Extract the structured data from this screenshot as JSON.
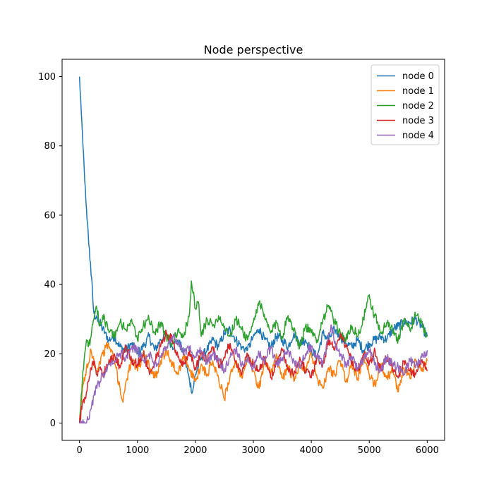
{
  "chart_data": {
    "type": "line",
    "title": "Node perspective",
    "xlabel": "",
    "ylabel": "",
    "xlim": [
      -300,
      6300
    ],
    "ylim": [
      -5,
      105
    ],
    "x_ticks": [
      0,
      1000,
      2000,
      3000,
      4000,
      5000,
      6000
    ],
    "y_ticks": [
      0,
      20,
      40,
      60,
      80,
      100
    ],
    "grid": false,
    "legend": "top-right",
    "series": [
      {
        "name": "node 0",
        "color": "#1f77b4",
        "x": [
          0,
          30,
          60,
          90,
          120,
          150,
          180,
          210,
          240,
          270,
          300,
          350,
          400,
          450,
          500,
          600,
          700,
          800,
          900,
          1000,
          1100,
          1200,
          1300,
          1400,
          1500,
          1600,
          1700,
          1800,
          1900,
          1950,
          2000,
          2100,
          2200,
          2300,
          2400,
          2500,
          2600,
          2700,
          2800,
          2900,
          3000,
          3100,
          3200,
          3300,
          3400,
          3500,
          3600,
          3700,
          3800,
          3900,
          4000,
          4100,
          4200,
          4300,
          4400,
          4500,
          4600,
          4700,
          4800,
          4900,
          5000,
          5100,
          5200,
          5300,
          5400,
          5500,
          5600,
          5700,
          5800,
          5900,
          6000
        ],
        "y": [
          100,
          90,
          80,
          70,
          62,
          55,
          47,
          42,
          33,
          30,
          31,
          29,
          27,
          26,
          24,
          25,
          22,
          21,
          23,
          20,
          22,
          25,
          21,
          24,
          26,
          22,
          24,
          20,
          12,
          9,
          14,
          19,
          21,
          24,
          22,
          26,
          27,
          24,
          22,
          21,
          25,
          27,
          24,
          22,
          25,
          24,
          22,
          26,
          23,
          24,
          21,
          19,
          26,
          24,
          27,
          25,
          23,
          22,
          24,
          21,
          23,
          24,
          25,
          24,
          27,
          28,
          29,
          29,
          30,
          28,
          25
        ]
      },
      {
        "name": "node 1",
        "color": "#ff7f0e",
        "x": [
          0,
          50,
          100,
          150,
          200,
          250,
          300,
          400,
          500,
          600,
          700,
          750,
          800,
          900,
          1000,
          1100,
          1200,
          1300,
          1400,
          1500,
          1600,
          1700,
          1800,
          1900,
          2000,
          2100,
          2200,
          2300,
          2400,
          2500,
          2600,
          2700,
          2800,
          2900,
          3000,
          3100,
          3200,
          3300,
          3400,
          3500,
          3600,
          3700,
          3800,
          3900,
          4000,
          4100,
          4200,
          4300,
          4400,
          4500,
          4600,
          4700,
          4800,
          4900,
          5000,
          5100,
          5200,
          5300,
          5400,
          5500,
          5600,
          5700,
          5800,
          5900,
          6000
        ],
        "y": [
          0,
          10,
          14,
          17,
          21,
          18,
          15,
          20,
          23,
          18,
          10,
          6,
          12,
          18,
          15,
          20,
          17,
          13,
          18,
          21,
          17,
          14,
          20,
          15,
          12,
          17,
          14,
          18,
          13,
          7,
          14,
          17,
          13,
          19,
          15,
          10,
          18,
          14,
          20,
          13,
          16,
          12,
          17,
          15,
          20,
          13,
          10,
          16,
          14,
          18,
          12,
          17,
          13,
          19,
          14,
          11,
          17,
          13,
          15,
          9,
          16,
          13,
          18,
          15,
          18
        ]
      },
      {
        "name": "node 2",
        "color": "#2ca02c",
        "x": [
          0,
          30,
          60,
          90,
          120,
          150,
          200,
          250,
          300,
          350,
          400,
          500,
          600,
          700,
          800,
          900,
          1000,
          1100,
          1200,
          1300,
          1400,
          1500,
          1600,
          1700,
          1800,
          1900,
          1930,
          2000,
          2050,
          2100,
          2200,
          2300,
          2400,
          2500,
          2600,
          2700,
          2800,
          2900,
          3000,
          3100,
          3200,
          3300,
          3400,
          3500,
          3600,
          3700,
          3800,
          3900,
          4000,
          4100,
          4200,
          4300,
          4400,
          4500,
          4600,
          4700,
          4800,
          4900,
          5000,
          5050,
          5100,
          5200,
          5300,
          5400,
          5500,
          5600,
          5700,
          5800,
          5900,
          6000
        ],
        "y": [
          0,
          8,
          15,
          20,
          24,
          22,
          25,
          30,
          33,
          28,
          31,
          27,
          25,
          29,
          27,
          30,
          24,
          28,
          30,
          26,
          29,
          25,
          23,
          27,
          25,
          32,
          41,
          33,
          35,
          25,
          30,
          28,
          31,
          28,
          25,
          30,
          27,
          24,
          29,
          35,
          30,
          26,
          29,
          25,
          31,
          27,
          22,
          28,
          26,
          24,
          30,
          34,
          29,
          26,
          24,
          28,
          25,
          30,
          37,
          33,
          31,
          26,
          29,
          27,
          24,
          30,
          27,
          31,
          29,
          25
        ]
      },
      {
        "name": "node 3",
        "color": "#d62728",
        "x": [
          0,
          50,
          100,
          150,
          200,
          250,
          300,
          350,
          400,
          500,
          600,
          700,
          800,
          900,
          1000,
          1100,
          1200,
          1300,
          1400,
          1500,
          1600,
          1700,
          1800,
          1900,
          2000,
          2100,
          2200,
          2300,
          2400,
          2500,
          2600,
          2700,
          2800,
          2900,
          3000,
          3100,
          3200,
          3300,
          3400,
          3500,
          3600,
          3700,
          3800,
          3900,
          4000,
          4100,
          4200,
          4300,
          4400,
          4500,
          4600,
          4700,
          4800,
          4900,
          5000,
          5100,
          5200,
          5300,
          5400,
          5500,
          5600,
          5700,
          5800,
          5900,
          6000
        ],
        "y": [
          0,
          6,
          7,
          12,
          16,
          18,
          14,
          16,
          14,
          17,
          20,
          16,
          22,
          18,
          17,
          20,
          15,
          18,
          22,
          26,
          24,
          19,
          17,
          21,
          16,
          20,
          18,
          22,
          16,
          19,
          23,
          18,
          14,
          20,
          17,
          15,
          19,
          13,
          17,
          21,
          16,
          14,
          19,
          15,
          13,
          19,
          17,
          24,
          21,
          26,
          22,
          18,
          15,
          20,
          17,
          21,
          15,
          19,
          16,
          13,
          18,
          15,
          14,
          18,
          15
        ]
      },
      {
        "name": "node 4",
        "color": "#9467bd",
        "x": [
          0,
          50,
          100,
          150,
          200,
          250,
          300,
          350,
          400,
          450,
          500,
          600,
          700,
          800,
          900,
          1000,
          1100,
          1200,
          1300,
          1400,
          1500,
          1600,
          1700,
          1800,
          1900,
          2000,
          2100,
          2200,
          2300,
          2400,
          2500,
          2600,
          2700,
          2800,
          2900,
          3000,
          3100,
          3200,
          3300,
          3400,
          3500,
          3600,
          3700,
          3800,
          3900,
          4000,
          4100,
          4200,
          4300,
          4350,
          4400,
          4500,
          4600,
          4700,
          4800,
          4900,
          5000,
          5100,
          5200,
          5300,
          5400,
          5500,
          5600,
          5700,
          5800,
          5900,
          6000
        ],
        "y": [
          0,
          0,
          0,
          1,
          4,
          8,
          10,
          12,
          14,
          15,
          17,
          18,
          20,
          19,
          22,
          21,
          18,
          20,
          17,
          19,
          22,
          25,
          23,
          20,
          22,
          19,
          21,
          17,
          20,
          18,
          15,
          19,
          21,
          17,
          19,
          16,
          20,
          18,
          22,
          17,
          19,
          21,
          18,
          16,
          20,
          22,
          19,
          17,
          26,
          28,
          23,
          20,
          17,
          19,
          16,
          18,
          21,
          17,
          15,
          19,
          17,
          16,
          14,
          18,
          16,
          19,
          21
        ]
      }
    ]
  }
}
